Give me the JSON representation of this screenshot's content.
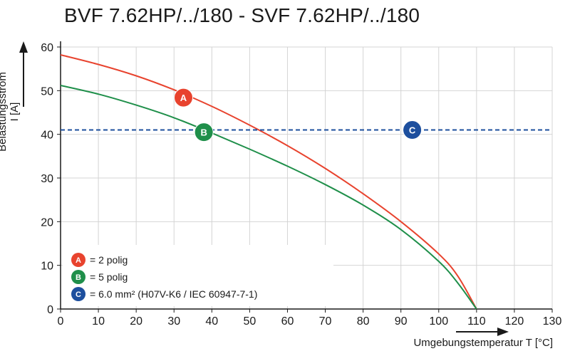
{
  "title": "BVF 7.62HP/../180 - SVF 7.62HP/../180",
  "chart_data": {
    "type": "line",
    "title": "BVF 7.62HP/../180 - SVF 7.62HP/../180",
    "xlabel": "Umgebungstemperatur T [°C]",
    "ylabel": "Belastungsstrom I [A]",
    "xlim": [
      0,
      130
    ],
    "ylim": [
      0,
      60
    ],
    "xticks": [
      0,
      10,
      20,
      30,
      40,
      50,
      60,
      70,
      80,
      90,
      100,
      110,
      120,
      130
    ],
    "yticks": [
      0,
      10,
      20,
      30,
      40,
      50,
      60
    ],
    "grid": true,
    "legend_position": "bottom-left",
    "series": [
      {
        "name": "= 2 polig",
        "marker": "A",
        "color": "#e8432e",
        "style": "solid",
        "x": [
          0,
          10,
          20,
          30,
          40,
          50,
          60,
          70,
          80,
          90,
          100,
          105,
          110
        ],
        "y": [
          58.2,
          56.0,
          53.4,
          50.2,
          46.4,
          42.1,
          37.4,
          32.2,
          26.4,
          20.0,
          12.6,
          7.6,
          0
        ]
      },
      {
        "name": "= 5 polig",
        "marker": "B",
        "color": "#1f8f4a",
        "style": "solid",
        "x": [
          0,
          10,
          20,
          30,
          40,
          50,
          60,
          70,
          80,
          90,
          100,
          105,
          110
        ],
        "y": [
          51.2,
          49.2,
          46.7,
          43.8,
          40.3,
          36.6,
          32.7,
          28.5,
          23.8,
          18.2,
          10.9,
          6.0,
          0
        ]
      },
      {
        "name": "= 6.0 mm² (H07V-K6 / IEC 60947-7-1)",
        "marker": "C",
        "color": "#1d4f9e",
        "style": "dashed",
        "x": [
          0,
          130
        ],
        "y": [
          41,
          41
        ]
      }
    ],
    "markers": [
      {
        "label": "A",
        "x": 32.5,
        "y": 48.4,
        "color": "#e8432e"
      },
      {
        "label": "B",
        "x": 37.9,
        "y": 40.5,
        "color": "#1f8f4a"
      },
      {
        "label": "C",
        "x": 93.0,
        "y": 41.0,
        "color": "#1d4f9e"
      }
    ]
  }
}
